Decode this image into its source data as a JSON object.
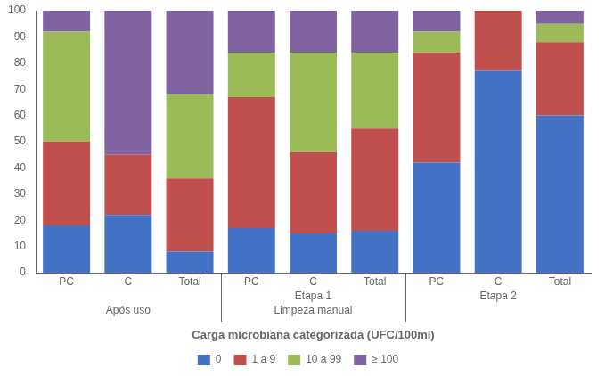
{
  "chart_data": {
    "type": "bar",
    "stacked": true,
    "categories": [
      "PC",
      "C",
      "Total",
      "PC",
      "C",
      "Total",
      "PC",
      "C",
      "Total"
    ],
    "series": [
      {
        "name": "0",
        "color": "#4472C4",
        "values": [
          18,
          22,
          8,
          17,
          15,
          16,
          42,
          77,
          60
        ]
      },
      {
        "name": "1 a 9",
        "color": "#C0504D",
        "values": [
          32,
          23,
          28,
          50,
          31,
          39,
          42,
          23,
          28
        ]
      },
      {
        "name": "10 a 99",
        "color": "#9BBB59",
        "values": [
          42,
          0,
          32,
          17,
          38,
          29,
          8,
          0,
          7
        ]
      },
      {
        "name": "≥ 100",
        "color": "#8064A2",
        "values": [
          8,
          55,
          32,
          16,
          16,
          16,
          8,
          0,
          5
        ]
      }
    ],
    "group_labels": [
      [
        null,
        "Etapa 1",
        "Etapa 2"
      ],
      [
        "Após uso",
        "Limpeza manual",
        null
      ]
    ],
    "xlabel": "Carga microbiana categorizada (UFC/100ml)",
    "ylim": [
      0,
      100
    ],
    "yticks": [
      0,
      10,
      20,
      30,
      40,
      50,
      60,
      70,
      80,
      90,
      100
    ],
    "grid": false,
    "legend": "bottom"
  }
}
